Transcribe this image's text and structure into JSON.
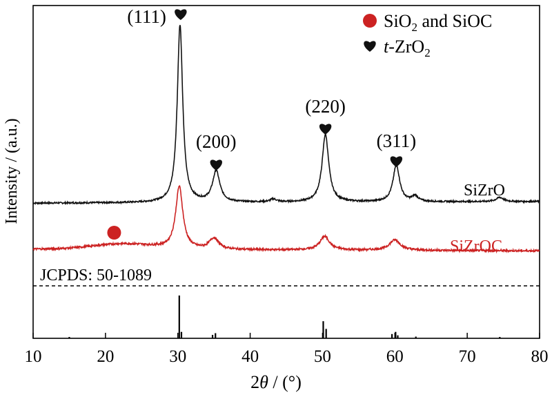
{
  "chart_data": {
    "type": "line",
    "xlabel": "2θ / (°)",
    "ylabel": "Intensity / (a.u.)",
    "xlim": [
      10,
      80
    ],
    "xticks": [
      10,
      20,
      30,
      40,
      50,
      60,
      70,
      80
    ],
    "grid": false,
    "legend": {
      "placement": "top-right",
      "entries": [
        {
          "marker": "circle",
          "color": "#cc2222",
          "label_main": "SiO",
          "label_sub": "2",
          "label_rest": " and SiOC"
        },
        {
          "marker": "heart",
          "color": "#111111",
          "label_italic": "t",
          "label_main": "-ZrO",
          "label_sub": "2"
        }
      ]
    },
    "series": [
      {
        "name": "SiZrO",
        "color": "#111111",
        "baseline": 0.42,
        "slope": 0.0012,
        "peaks": [
          {
            "x": 30.3,
            "height": 9.2,
            "width": 0.45
          },
          {
            "x": 35.3,
            "height": 1.6,
            "width": 0.6
          },
          {
            "x": 43.2,
            "height": 0.15,
            "width": 0.5
          },
          {
            "x": 50.4,
            "height": 3.5,
            "width": 0.55
          },
          {
            "x": 60.2,
            "height": 1.9,
            "width": 0.55
          },
          {
            "x": 62.8,
            "height": 0.28,
            "width": 0.5
          },
          {
            "x": 74.5,
            "height": 0.22,
            "width": 0.6
          }
        ]
      },
      {
        "name": "SiZrOC",
        "color": "#cc2222",
        "baseline": 0.2,
        "slope": -0.001,
        "hump": {
          "x": 22.5,
          "height": 0.22,
          "width": 6
        },
        "peaks": [
          {
            "x": 30.2,
            "height": 2.5,
            "width": 0.6
          },
          {
            "x": 35.0,
            "height": 0.45,
            "width": 0.8
          },
          {
            "x": 50.3,
            "height": 0.55,
            "width": 0.8
          },
          {
            "x": 60.0,
            "height": 0.42,
            "width": 0.9
          }
        ]
      }
    ],
    "reference": {
      "label": "JCPDS: 50-1089",
      "sticks": [
        {
          "x": 30.2,
          "intensity": 100
        },
        {
          "x": 30.5,
          "intensity": 15
        },
        {
          "x": 34.8,
          "intensity": 8
        },
        {
          "x": 35.2,
          "intensity": 12
        },
        {
          "x": 50.1,
          "intensity": 40
        },
        {
          "x": 50.5,
          "intensity": 22
        },
        {
          "x": 59.6,
          "intensity": 10
        },
        {
          "x": 60.1,
          "intensity": 15
        },
        {
          "x": 60.4,
          "intensity": 7
        },
        {
          "x": 62.9,
          "intensity": 4
        },
        {
          "x": 74.5,
          "intensity": 3
        },
        {
          "x": 15.0,
          "intensity": 1
        }
      ]
    },
    "annotations": [
      {
        "text": "(111)",
        "x": 30.3,
        "marker": "heart"
      },
      {
        "text": "(200)",
        "x": 35.3,
        "marker": "heart"
      },
      {
        "text": "(220)",
        "x": 50.4,
        "marker": "heart"
      },
      {
        "text": "(311)",
        "x": 60.2,
        "marker": "heart"
      },
      {
        "text": "",
        "x": 21.2,
        "marker": "circle"
      }
    ],
    "series_labels": [
      {
        "text": "SiZrO",
        "color": "#111111"
      },
      {
        "text": "SiZrOC",
        "color": "#cc2222"
      }
    ]
  }
}
